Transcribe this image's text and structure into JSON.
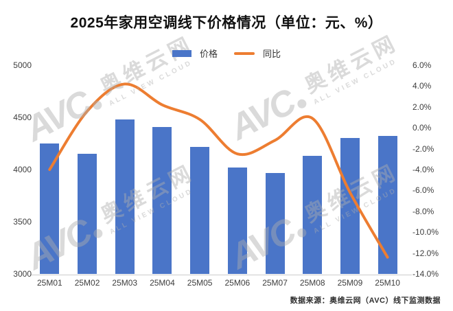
{
  "title": "2025年家用空调线下价格情况（单位：元、%）",
  "legend": {
    "price": "价格",
    "yoy": "同比"
  },
  "footer": "数据来源：奥维云网（AVC）线下监测数据",
  "watermark": {
    "logo": "AVC",
    "name": "奥维云网",
    "subtitle": "ALL VIEW CLOUD"
  },
  "colors": {
    "bar": "#4A75C8",
    "line": "#ED7D31",
    "axis_line": "#cccccc",
    "title": "#111111"
  },
  "chart_data": {
    "type": "bar",
    "subtype": "bar+line combo, dual axis",
    "title": "2025年家用空调线下价格情况（单位：元、%）",
    "categories": [
      "25M01",
      "25M02",
      "25M03",
      "25M04",
      "25M05",
      "25M06",
      "25M07",
      "25M08",
      "25M09",
      "25M10"
    ],
    "series": [
      {
        "name": "价格",
        "type": "bar",
        "axis": "left",
        "unit": "元",
        "values": [
          4250,
          4150,
          4480,
          4410,
          4220,
          4020,
          3970,
          4130,
          4300,
          4320
        ]
      },
      {
        "name": "同比",
        "type": "line",
        "axis": "right",
        "unit": "%",
        "values": [
          -4.0,
          1.6,
          4.2,
          2.2,
          0.8,
          -2.5,
          -1.2,
          0.9,
          -6.2,
          -12.4
        ]
      }
    ],
    "left_axis": {
      "min": 3000,
      "max": 5000,
      "step": 500,
      "ticks": [
        "5000",
        "4500",
        "4000",
        "3500",
        "3000"
      ]
    },
    "right_axis": {
      "min": -14,
      "max": 6,
      "step": 2,
      "ticks": [
        "6.0%",
        "4.0%",
        "2.0%",
        "0.0%",
        "-2.0%",
        "-4.0%",
        "-6.0%",
        "-8.0%",
        "-10.0%",
        "-12.0%",
        "-14.0%"
      ]
    },
    "grid": false,
    "legend_position": "top-center"
  }
}
